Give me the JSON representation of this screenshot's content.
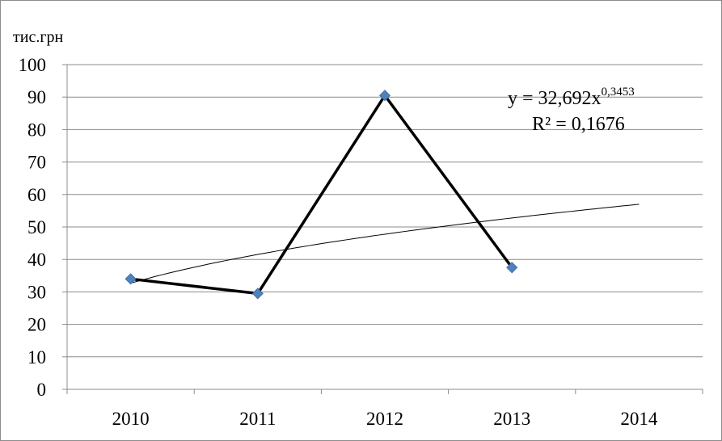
{
  "chart_data": {
    "type": "line",
    "unit_label": "тис.грн",
    "categories": [
      "2010",
      "2011",
      "2012",
      "2013",
      "2014"
    ],
    "series": [
      {
        "values": [
          34,
          29.5,
          90.5,
          37.5,
          null
        ],
        "color": "#000000",
        "marker": "diamond",
        "marker_color": "#4f81bd"
      }
    ],
    "trendline": {
      "type": "power",
      "coefficient": 32.692,
      "exponent": 0.3453,
      "r_squared": 0.1676,
      "equation_base": "y = 32,692x",
      "equation_exponent": "0,3453",
      "r_squared_label": "R² = 0,1676",
      "color": "#000000"
    },
    "ylim": [
      0,
      100
    ],
    "yticks": [
      "0",
      "10",
      "20",
      "30",
      "40",
      "50",
      "60",
      "70",
      "80",
      "90",
      "100"
    ],
    "grid": true
  }
}
